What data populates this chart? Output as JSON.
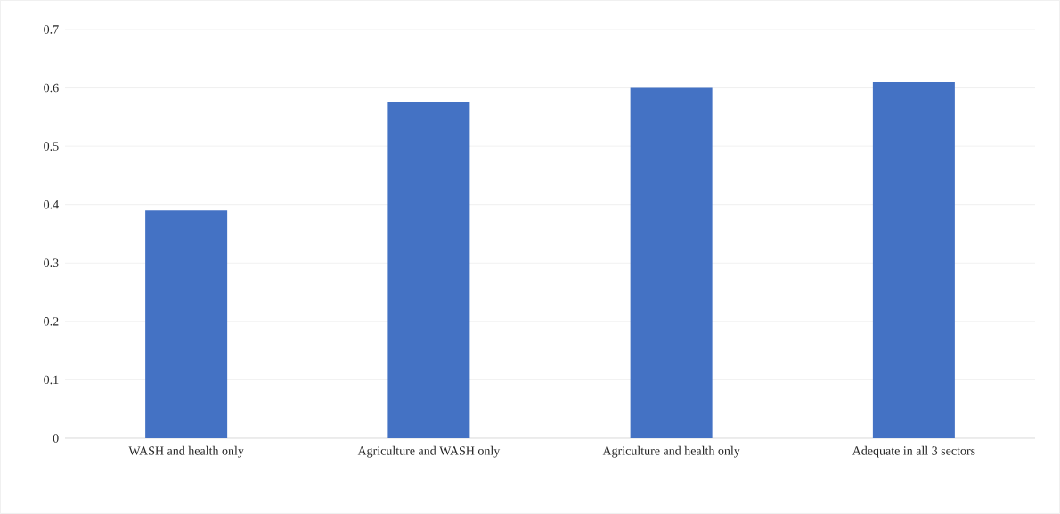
{
  "chart_data": {
    "type": "bar",
    "categories": [
      "WASH and health only",
      "Agriculture and WASH only",
      "Agriculture and health only",
      "Adequate in all 3 sectors"
    ],
    "values": [
      0.39,
      0.575,
      0.6,
      0.61
    ],
    "color": "#4472c4",
    "ylim": [
      0,
      0.7
    ],
    "yticks": [
      0,
      0.1,
      0.2,
      0.3,
      0.4,
      0.5,
      0.6,
      0.7
    ],
    "grid": "y"
  }
}
